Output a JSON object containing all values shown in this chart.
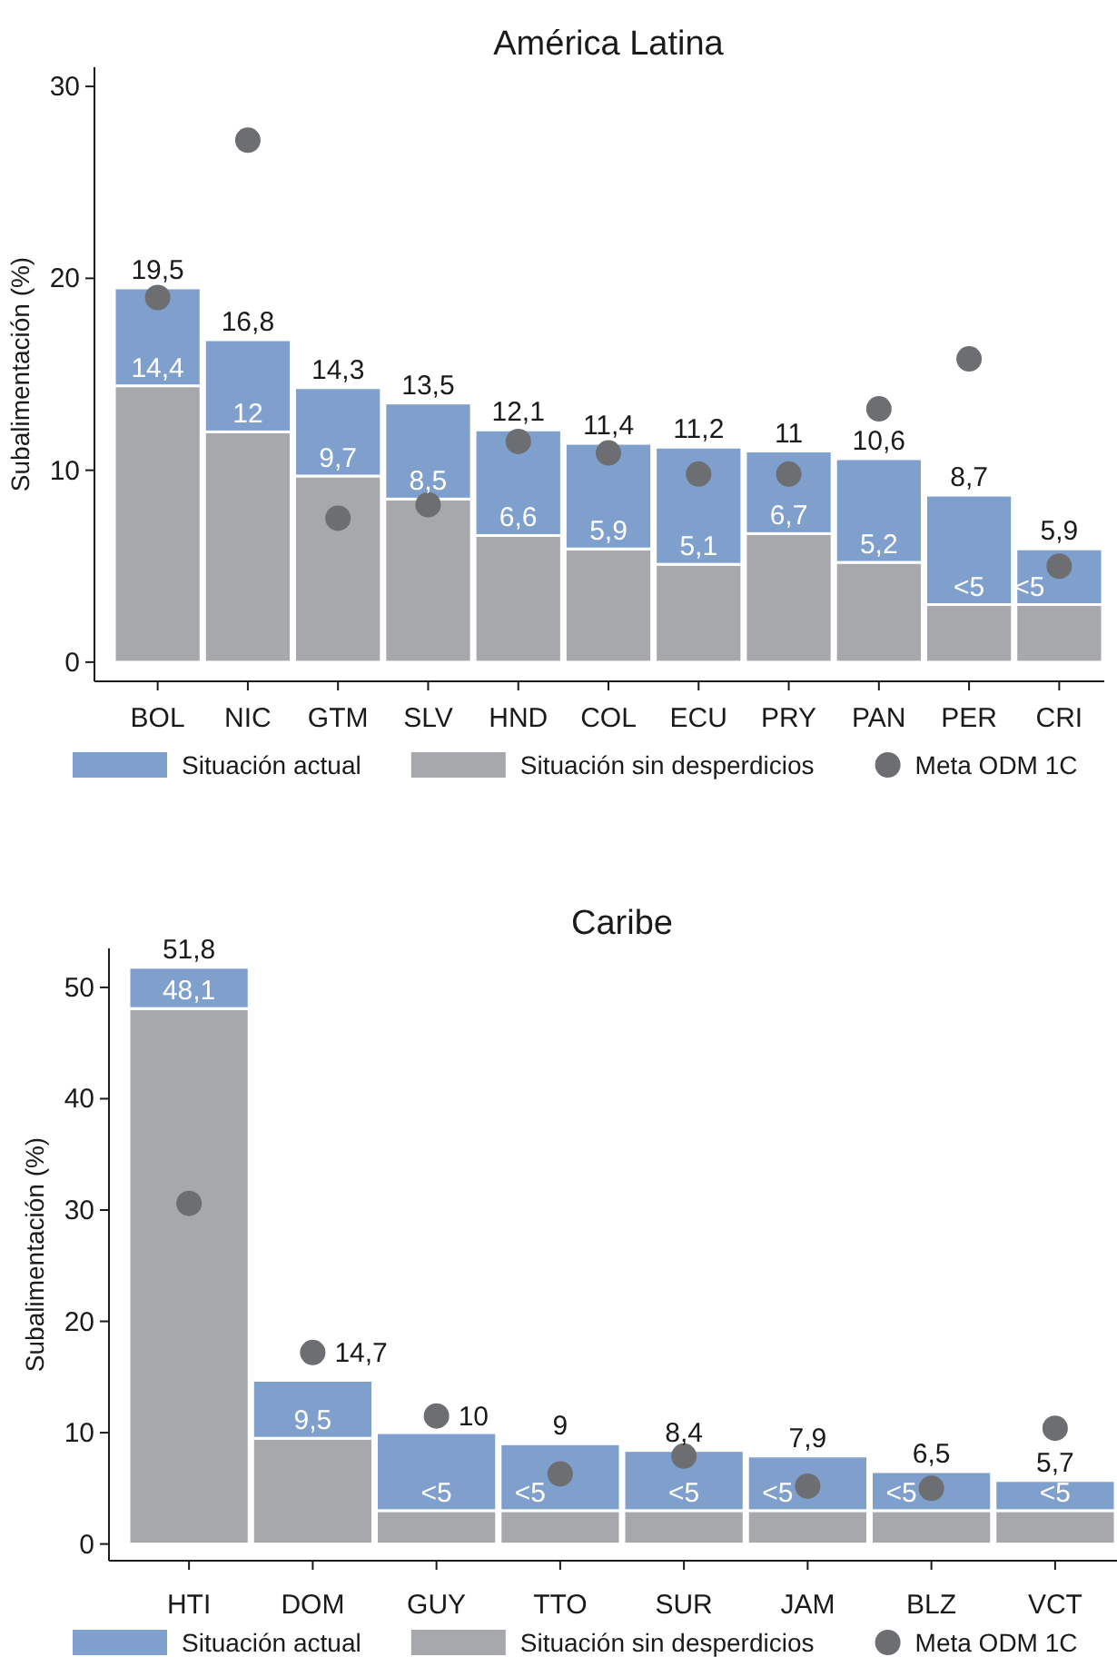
{
  "chart_data": [
    {
      "type": "bar",
      "stacked": true,
      "title": "América Latina",
      "ylabel": "Subalimentación (%)",
      "categories": [
        "BOL",
        "NIC",
        "GTM",
        "SLV",
        "HND",
        "COL",
        "ECU",
        "PRY",
        "PAN",
        "PER",
        "CRI"
      ],
      "ylim": [
        -1,
        31
      ],
      "yticks": [
        0,
        10,
        20,
        30
      ],
      "legend": "bottom",
      "totals": [
        "19,5",
        "16,8",
        "14,3",
        "13,5",
        "12,1",
        "11,4",
        "11,2",
        "11",
        "10,6",
        "8,7",
        "5,9"
      ],
      "series": [
        {
          "name": "Situación sin desperdicios",
          "color": "#a7a8ab",
          "values": [
            14.4,
            12,
            9.7,
            8.5,
            6.6,
            5.9,
            5.1,
            6.7,
            5.2,
            3,
            3
          ],
          "value_labels": [
            "14,4",
            "12",
            "9,7",
            "8,5",
            "6,6",
            "5,9",
            "5,1",
            "6,7",
            "5,2",
            "<5",
            "<5"
          ]
        },
        {
          "name": "Situación actual",
          "color": "#7f9fcc",
          "values": [
            5.1,
            4.8,
            4.6,
            5,
            5.5,
            5.5,
            6.1,
            4.3,
            5.4,
            5.7,
            2.9
          ]
        },
        {
          "name": "Meta ODM 1C",
          "type": "scatter",
          "color": "#6d6e71",
          "x": [
            "BOL",
            "NIC",
            "GTM",
            "SLV",
            "HND",
            "COL",
            "ECU",
            "PRY",
            "PAN",
            "PER",
            "CRI"
          ],
          "values": [
            19,
            27.2,
            7.5,
            8.2,
            11.5,
            10.9,
            9.8,
            9.8,
            13.2,
            15.8,
            5
          ]
        }
      ]
    },
    {
      "type": "bar",
      "stacked": true,
      "title": "Caribe",
      "ylabel": "Subalimentación (%)",
      "categories": [
        "HTI",
        "DOM",
        "GUY",
        "TTO",
        "SUR",
        "JAM",
        "BLZ",
        "VCT"
      ],
      "ylim": [
        -1.5,
        53.5
      ],
      "yticks": [
        0,
        10,
        20,
        30,
        40,
        50
      ],
      "legend": "bottom",
      "totals": [
        "51,8",
        "14,7",
        "10",
        "9",
        "8,4",
        "7,9",
        "6,5",
        "5,7"
      ],
      "series": [
        {
          "name": "Situación sin desperdicios",
          "color": "#a7a8ab",
          "values": [
            48.1,
            9.5,
            3,
            3,
            3,
            3,
            3,
            3
          ],
          "value_labels": [
            "48,1",
            "9,5",
            "<5",
            "<5",
            "<5",
            "<5",
            "<5",
            "<5"
          ]
        },
        {
          "name": "Situación actual",
          "color": "#7f9fcc",
          "values": [
            3.7,
            5.2,
            7,
            6,
            5.4,
            4.9,
            3.5,
            2.7
          ]
        },
        {
          "name": "Meta ODM 1C",
          "type": "scatter",
          "color": "#6d6e71",
          "x": [
            "HTI",
            "DOM",
            "GUY",
            "TTO",
            "SUR",
            "JAM",
            "BLZ",
            "VCT"
          ],
          "values": [
            30.6,
            17.2,
            11.5,
            6.3,
            7.9,
            5.2,
            5,
            10.4
          ]
        }
      ]
    }
  ]
}
